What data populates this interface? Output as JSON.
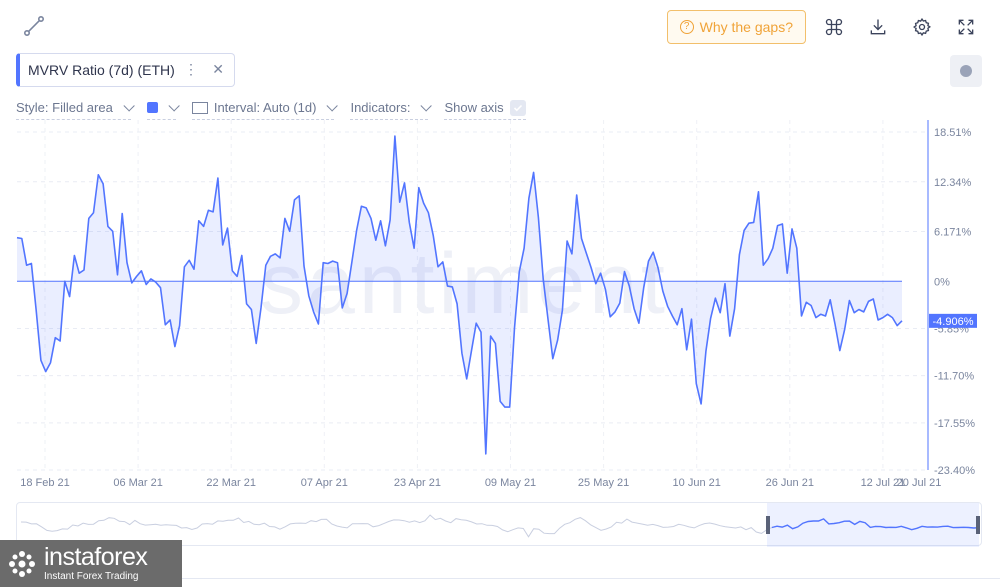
{
  "toolbar": {
    "gaps_label": "Why the gaps?"
  },
  "metric": {
    "label": "MVRV Ratio (7d) (ETH)",
    "menu": "⋮",
    "close": "✕"
  },
  "settings": {
    "style_label": "Style: Filled area",
    "interval_label": "Interval: Auto (1d)",
    "indicators_label": "Indicators:",
    "show_axis_label": "Show axis",
    "line_color": "#5275ff"
  },
  "watermark": "santiment",
  "footer": {
    "brand": "instaforex",
    "tagline": "Instant Forex Trading"
  },
  "chart_data": {
    "type": "area",
    "series": [
      {
        "values": [
          5.4,
          5.3,
          2.0,
          2.2,
          -3.5,
          -9.8,
          -11.2,
          -10.1,
          -7.0,
          -7.4,
          0.0,
          -1.9,
          3.2,
          1.0,
          1.4,
          7.8,
          8.5,
          13.2,
          12.1,
          6.8,
          6.2,
          0.8,
          8.4,
          2.3,
          -0.2,
          0.6,
          1.3,
          -0.4,
          0.3,
          -0.1,
          -0.8,
          -5.4,
          -4.8,
          -8.1,
          -5.5,
          1.8,
          2.6,
          1.5,
          7.5,
          6.8,
          8.8,
          8.6,
          12.8,
          4.5,
          6.6,
          1.3,
          0.6,
          3.2,
          -2.8,
          -3.5,
          -7.7,
          -3.3,
          2.0,
          3.1,
          3.4,
          2.9,
          7.8,
          6.2,
          10.1,
          10.6,
          1.9,
          -1.8,
          -3.8,
          -5.3,
          2.3,
          2.2,
          2.5,
          2.3,
          -3.3,
          -1.5,
          2.4,
          6.3,
          9.3,
          9.1,
          7.8,
          5.1,
          7.5,
          4.4,
          7.6,
          18.0,
          9.8,
          12.2,
          7.3,
          4.1,
          11.6,
          9.7,
          8.5,
          5.7,
          1.8,
          2.4,
          -0.6,
          -0.7,
          -2.8,
          -8.9,
          -12.1,
          -8.6,
          -5.2,
          -6.3,
          -21.4,
          -6.8,
          -7.7,
          -14.9,
          -15.6,
          -15.6,
          -5.8,
          1.2,
          4.1,
          10.3,
          13.5,
          7.9,
          0.3,
          -4.7,
          -9.6,
          -7.3,
          -3.6,
          5.0,
          3.4,
          10.7,
          5.3,
          3.5,
          1.7,
          -0.3,
          1.0,
          -1.0,
          -4.4,
          -3.8,
          -2.7,
          1.2,
          -0.6,
          -3.4,
          -5.2,
          -0.8,
          2.5,
          3.6,
          1.7,
          -1.2,
          -3.1,
          -4.3,
          -5.4,
          -3.4,
          -8.5,
          -4.7,
          -12.7,
          -15.2,
          -8.7,
          -4.6,
          -2.1,
          -3.9,
          -0.3,
          -6.8,
          -3.4,
          3.3,
          6.3,
          7.2,
          7.3,
          11.1,
          2.0,
          2.8,
          4.1,
          6.9,
          7.1,
          1.0,
          6.5,
          4.1,
          -4.3,
          -2.6,
          -3.0,
          -4.5,
          -4.1,
          -4.3,
          -2.3,
          -5.3,
          -8.6,
          -6.0,
          -2.4,
          -3.9,
          -3.5,
          -3.8,
          -2.5,
          -2.2,
          -4.8,
          -4.5,
          -4.1,
          -4.5,
          -5.5,
          -4.906
        ]
      }
    ],
    "x_tick_labels": [
      "18 Feb 21",
      "06 Mar 21",
      "22 Mar 21",
      "07 Apr 21",
      "23 Apr 21",
      "09 May 21",
      "25 May 21",
      "10 Jun 21",
      "26 Jun 21",
      "12 Jul 21",
      "20 Jul 21"
    ],
    "y_ticks": [
      18.51,
      12.34,
      6.171,
      0,
      -5.85,
      -11.7,
      -17.55,
      -23.4
    ],
    "y_tick_labels": [
      "18.51%",
      "12.34%",
      "6.171%",
      "0%",
      "-5.85%",
      "-11.70%",
      "-17.55%",
      "-23.40%"
    ],
    "ylim": [
      -23.4,
      18.51
    ],
    "last_value_label": "-4.906%",
    "grid": true
  }
}
